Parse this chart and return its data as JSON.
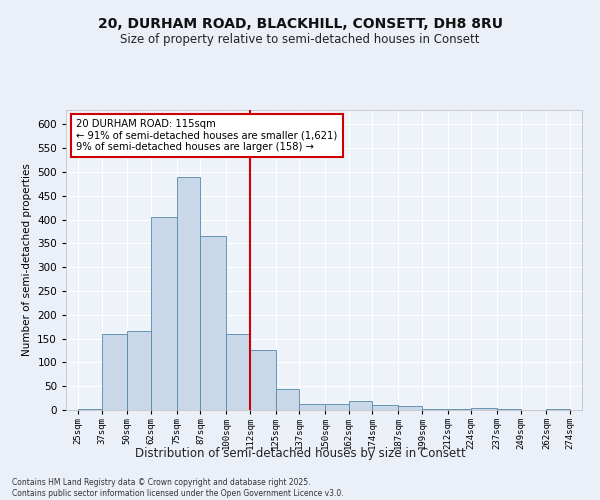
{
  "title1": "20, DURHAM ROAD, BLACKHILL, CONSETT, DH8 8RU",
  "title2": "Size of property relative to semi-detached houses in Consett",
  "xlabel": "Distribution of semi-detached houses by size in Consett",
  "ylabel": "Number of semi-detached properties",
  "bin_labels": [
    "25sqm",
    "37sqm",
    "50sqm",
    "62sqm",
    "75sqm",
    "87sqm",
    "100sqm",
    "112sqm",
    "125sqm",
    "137sqm",
    "150sqm",
    "162sqm",
    "174sqm",
    "187sqm",
    "199sqm",
    "212sqm",
    "224sqm",
    "237sqm",
    "249sqm",
    "262sqm",
    "274sqm"
  ],
  "bin_edges": [
    25,
    37,
    50,
    62,
    75,
    87,
    100,
    112,
    125,
    137,
    150,
    162,
    174,
    187,
    199,
    212,
    224,
    237,
    249,
    262,
    274
  ],
  "bar_values": [
    2,
    160,
    165,
    405,
    490,
    365,
    160,
    125,
    45,
    12,
    12,
    18,
    10,
    8,
    3,
    2,
    5,
    2,
    0,
    2
  ],
  "bar_color": "#c8d8e8",
  "bar_edge_color": "#5588aa",
  "vline_x": 112,
  "vline_color": "#cc0000",
  "annotation_title": "20 DURHAM ROAD: 115sqm",
  "annotation_line1": "← 91% of semi-detached houses are smaller (1,621)",
  "annotation_line2": "9% of semi-detached houses are larger (158) →",
  "annotation_box_color": "#cc0000",
  "ylim": [
    0,
    630
  ],
  "yticks": [
    0,
    50,
    100,
    150,
    200,
    250,
    300,
    350,
    400,
    450,
    500,
    550,
    600
  ],
  "bg_color": "#eaeff8",
  "plot_bg_color": "#eef3fa",
  "footer1": "Contains HM Land Registry data © Crown copyright and database right 2025.",
  "footer2": "Contains public sector information licensed under the Open Government Licence v3.0."
}
